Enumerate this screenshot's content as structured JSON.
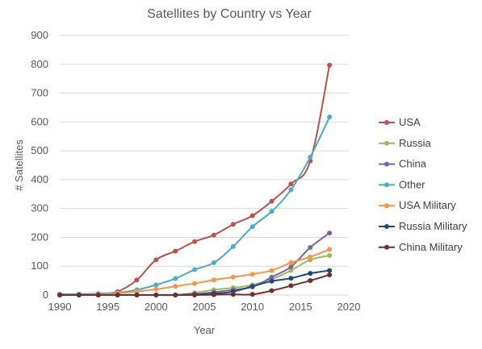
{
  "chart_data": {
    "type": "line",
    "title": "Satellites by Country vs Year",
    "xlabel": "Year",
    "ylabel": "# Satellites",
    "xlim": [
      1990,
      2020
    ],
    "ylim": [
      0,
      900
    ],
    "x_ticks": [
      "1990",
      "1995",
      "2000",
      "2005",
      "2010",
      "2015",
      "2020"
    ],
    "y_ticks": [
      "0",
      "100",
      "200",
      "300",
      "400",
      "500",
      "600",
      "700",
      "800",
      "900"
    ],
    "grid": "horizontal",
    "legend_position": "right",
    "x": [
      1990,
      1992,
      1994,
      1996,
      1998,
      2000,
      2002,
      2004,
      2006,
      2008,
      2010,
      2012,
      2014,
      2016,
      2018
    ],
    "series": [
      {
        "name": "USA",
        "color": "#c0504d",
        "values": [
          2,
          3,
          5,
          12,
          52,
          122,
          152,
          185,
          208,
          245,
          275,
          325,
          385,
          465,
          797
        ]
      },
      {
        "name": "Russia",
        "color": "#9bbb59",
        "values": [
          0,
          0,
          0,
          0,
          0,
          0,
          0,
          8,
          18,
          25,
          35,
          55,
          85,
          122,
          137
        ]
      },
      {
        "name": "China",
        "color": "#8064a2",
        "values": [
          0,
          0,
          0,
          0,
          0,
          0,
          0,
          3,
          10,
          18,
          28,
          62,
          98,
          165,
          215
        ]
      },
      {
        "name": "Other",
        "color": "#4bacc6",
        "values": [
          2,
          3,
          5,
          8,
          18,
          35,
          57,
          88,
          112,
          168,
          237,
          290,
          365,
          478,
          617
        ]
      },
      {
        "name": "USA Military",
        "color": "#f79646",
        "values": [
          0,
          0,
          2,
          5,
          12,
          20,
          30,
          40,
          52,
          62,
          72,
          85,
          112,
          132,
          158
        ]
      },
      {
        "name": "Russia Military",
        "color": "#1f497d",
        "values": [
          0,
          0,
          0,
          0,
          0,
          0,
          0,
          2,
          5,
          12,
          30,
          48,
          58,
          75,
          85
        ]
      },
      {
        "name": "China Military",
        "color": "#772c2a",
        "values": [
          0,
          0,
          0,
          0,
          0,
          0,
          0,
          0,
          1,
          2,
          2,
          15,
          32,
          50,
          70
        ]
      }
    ]
  }
}
